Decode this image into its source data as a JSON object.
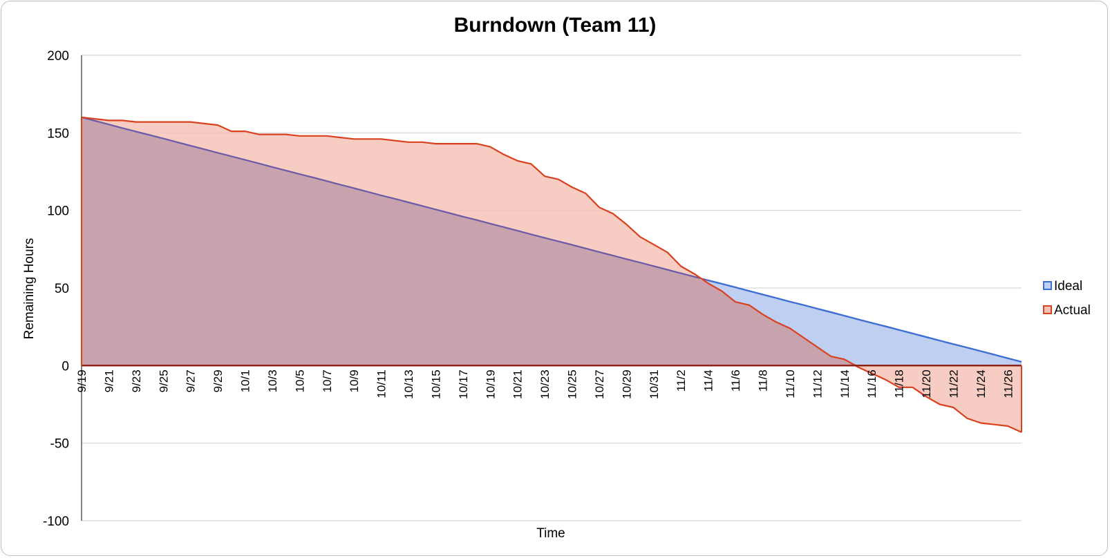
{
  "chart_data": {
    "type": "area",
    "title": "Burndown (Team 11)",
    "xlabel": "Time",
    "ylabel": "Remaining Hours",
    "ylim": [
      -100,
      200
    ],
    "yticks": [
      200,
      150,
      100,
      50,
      0,
      -50,
      -100
    ],
    "grid": true,
    "legend_position": "right",
    "x": [
      "9/19",
      "9/20",
      "9/21",
      "9/22",
      "9/23",
      "9/24",
      "9/25",
      "9/26",
      "9/27",
      "9/28",
      "9/29",
      "9/30",
      "10/1",
      "10/2",
      "10/3",
      "10/4",
      "10/5",
      "10/6",
      "10/7",
      "10/8",
      "10/9",
      "10/10",
      "10/11",
      "10/12",
      "10/13",
      "10/14",
      "10/15",
      "10/16",
      "10/17",
      "10/18",
      "10/19",
      "10/20",
      "10/21",
      "10/22",
      "10/23",
      "10/24",
      "10/25",
      "10/26",
      "10/27",
      "10/28",
      "10/29",
      "10/30",
      "10/31",
      "11/1",
      "11/2",
      "11/3",
      "11/4",
      "11/5",
      "11/6",
      "11/7",
      "11/8",
      "11/9",
      "11/10",
      "11/11",
      "11/12",
      "11/13",
      "11/14",
      "11/15",
      "11/16",
      "11/17",
      "11/18",
      "11/19",
      "11/20",
      "11/21",
      "11/22",
      "11/23",
      "11/24",
      "11/25",
      "11/26",
      "11/27"
    ],
    "tick_labels": [
      "9/19",
      "9/21",
      "9/23",
      "9/25",
      "9/27",
      "9/29",
      "10/1",
      "10/3",
      "10/5",
      "10/7",
      "10/9",
      "10/11",
      "10/13",
      "10/15",
      "10/17",
      "10/19",
      "10/21",
      "10/23",
      "10/25",
      "10/27",
      "10/29",
      "10/31",
      "11/2",
      "11/4",
      "11/6",
      "11/8",
      "11/10",
      "11/12",
      "11/14",
      "11/16",
      "11/18",
      "11/20",
      "11/22",
      "11/24",
      "11/26"
    ],
    "series": [
      {
        "name": "Ideal",
        "color": "#3b6fd4",
        "fill": "#bfcff1",
        "values": [
          160,
          157.7,
          155.4,
          153.1,
          150.8,
          148.6,
          146.3,
          144,
          141.7,
          139.4,
          137.1,
          134.9,
          132.6,
          130.3,
          128,
          125.7,
          123.4,
          121.2,
          118.9,
          116.6,
          114.3,
          112,
          109.7,
          107.5,
          105.2,
          102.9,
          100.6,
          98.3,
          96,
          93.8,
          91.5,
          89.2,
          86.9,
          84.6,
          82.3,
          80.1,
          77.8,
          75.5,
          73.2,
          70.9,
          68.6,
          66.4,
          64.1,
          61.8,
          59.5,
          57.2,
          54.9,
          52.7,
          50.4,
          48.1,
          45.8,
          43.5,
          41.2,
          39,
          36.7,
          34.4,
          32.1,
          29.8,
          27.5,
          25.3,
          23,
          20.7,
          18.4,
          16.1,
          13.8,
          11.6,
          9.3,
          7,
          4.7,
          2.4
        ]
      },
      {
        "name": "Actual",
        "color": "#d9411e",
        "fill": "#f4c3b8",
        "values": [
          160,
          159,
          158,
          158,
          157,
          157,
          157,
          157,
          157,
          156,
          155,
          151,
          151,
          149,
          149,
          149,
          148,
          148,
          148,
          147,
          146,
          146,
          146,
          145,
          144,
          144,
          143,
          143,
          143,
          143,
          141,
          136,
          132,
          130,
          122,
          120,
          115,
          111,
          102,
          98,
          91,
          83,
          78,
          73,
          64,
          59,
          53,
          48,
          41,
          39,
          33,
          28,
          24,
          18,
          12,
          6,
          4,
          -1,
          -5,
          -9,
          -14,
          -14,
          -20,
          -25,
          -27,
          -34,
          -37,
          -38,
          -39,
          -43
        ]
      }
    ]
  }
}
